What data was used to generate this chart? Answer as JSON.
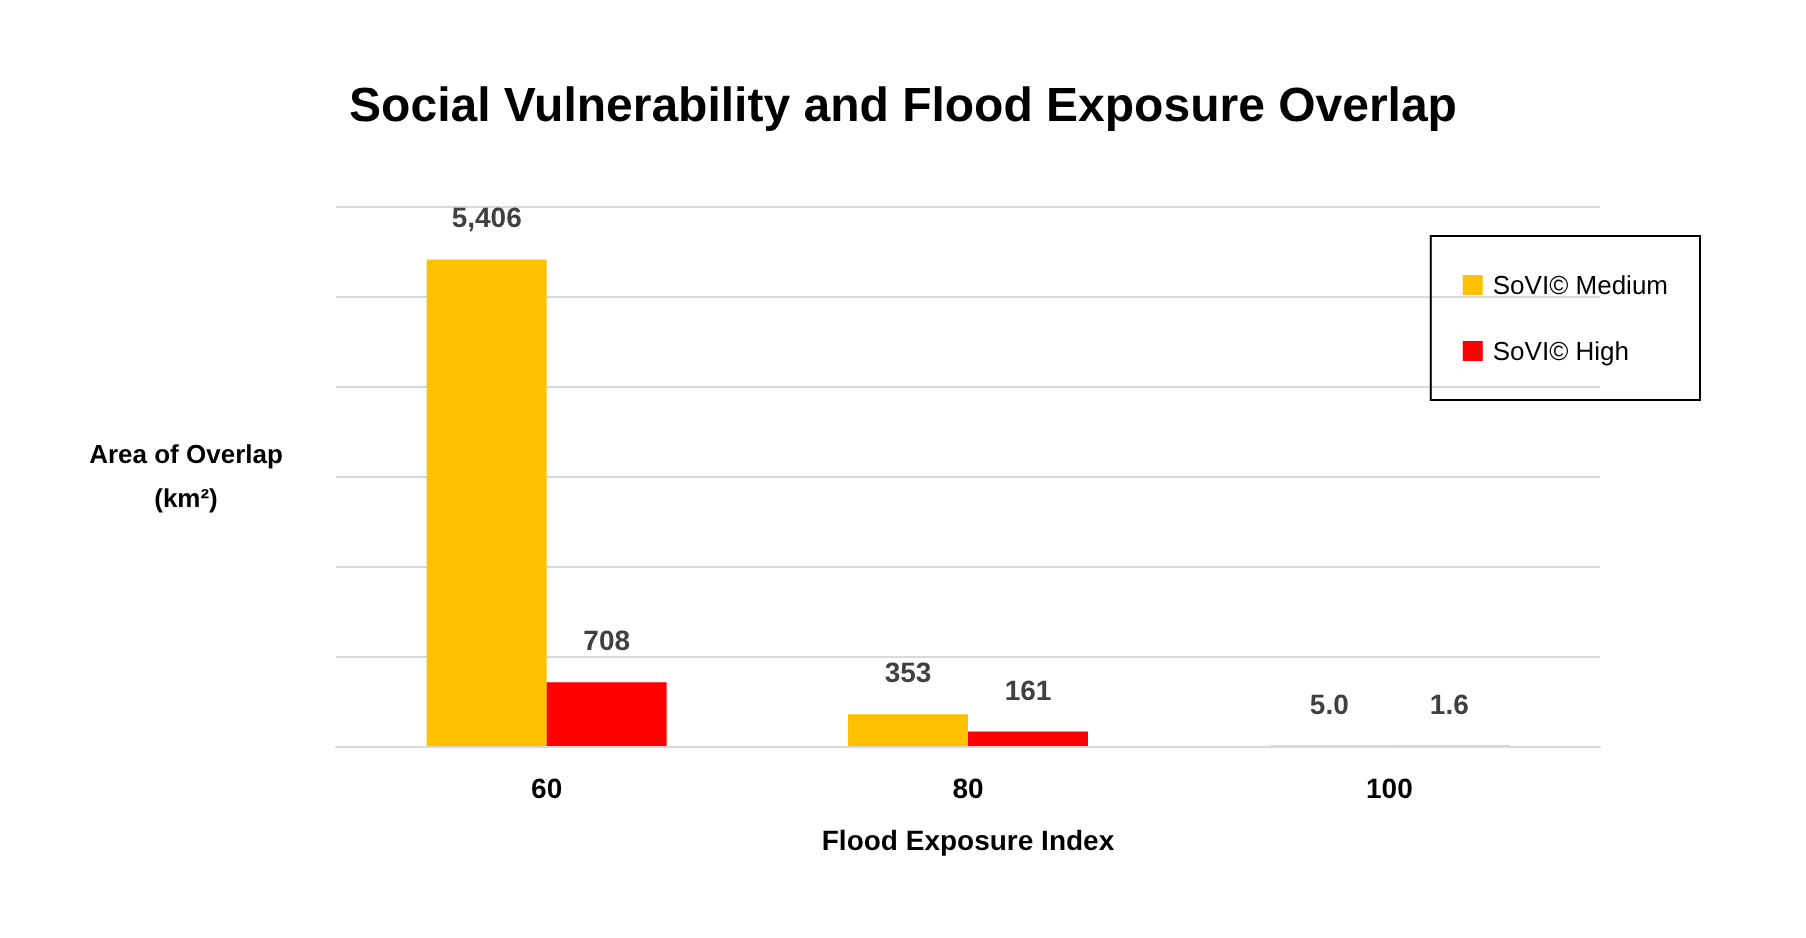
{
  "chart_data": {
    "type": "bar",
    "title": "Social Vulnerability and Flood Exposure Overlap",
    "xlabel": "Flood Exposure Index",
    "ylabel": "Area of Overlap\n(km²)",
    "categories": [
      "60",
      "80",
      "100"
    ],
    "series": [
      {
        "name": "SoVI© Medium",
        "color": "#ffc000",
        "values": [
          5406,
          353,
          5.0
        ],
        "value_labels": [
          "5,406",
          "353",
          "5.0"
        ]
      },
      {
        "name": "SoVI© High",
        "color": "#ff0000",
        "values": [
          708,
          161,
          1.6
        ],
        "value_labels": [
          "708",
          "161",
          "1.6"
        ]
      }
    ],
    "grid": "y",
    "legend": "top right",
    "tick_labels": "x"
  }
}
